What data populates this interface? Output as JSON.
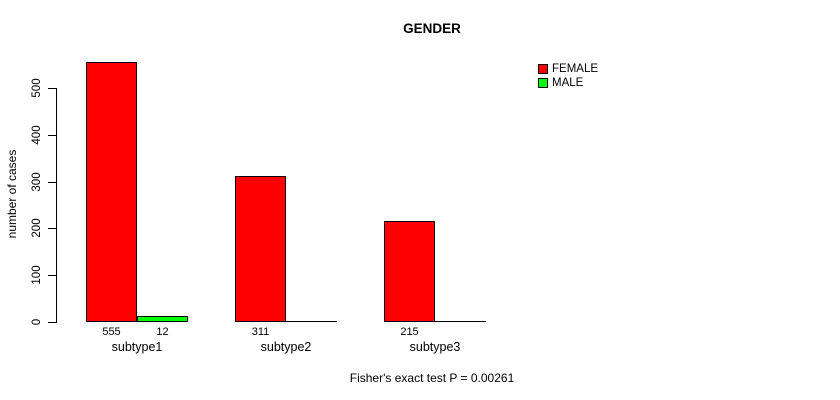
{
  "chart_data": {
    "type": "bar",
    "grouped": true,
    "title": "GENDER",
    "xlabel": "",
    "ylabel": "number of cases",
    "categories": [
      "subtype1",
      "subtype2",
      "subtype3"
    ],
    "series": [
      {
        "name": "FEMALE",
        "color": "#ff0000",
        "values": [
          555,
          311,
          215
        ]
      },
      {
        "name": "MALE",
        "color": "#00ff00",
        "values": [
          12,
          0,
          0
        ]
      }
    ],
    "bar_labels": [
      [
        "555",
        "311",
        "215"
      ],
      [
        "12",
        "",
        ""
      ]
    ],
    "y_ticks": [
      0,
      100,
      200,
      300,
      400,
      500
    ],
    "ylim": [
      0,
      560
    ],
    "grid": false,
    "legend_position": "top-right",
    "annotation": "Fisher's exact test P = 0.00261"
  }
}
